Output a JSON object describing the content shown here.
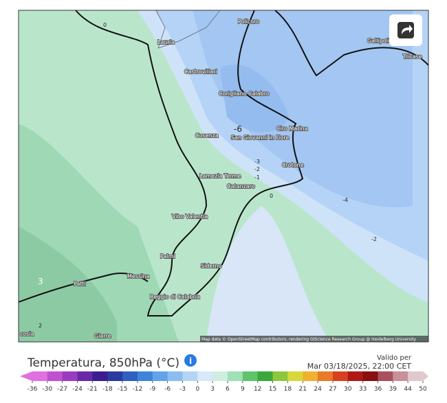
{
  "map": {
    "cities": [
      "Policoro",
      "Gallipoli",
      "Tricase",
      "Lauria",
      "Castrovillari",
      "Corigliano Calabro",
      "Cosenza",
      "Ciro Marina",
      "San Giovanni in Fiore",
      "Crotone",
      "Lamezia Terme",
      "Catanzaro",
      "Vibo Valentia",
      "Palmi",
      "Siderno",
      "Messina",
      "Reggio di Calabria",
      "Patti",
      "Giarre",
      "cosia"
    ],
    "contour_labels": [
      "0",
      "-6",
      "-3",
      "-2",
      "-1",
      "0",
      "-4",
      "-2",
      "3",
      "2"
    ],
    "attribution": "Map data © OpenStreetMap contributors, rendering GIScience Research Group @ Heidelberg University"
  },
  "legend": {
    "title": "Temperatura, 850hPa (°C)",
    "valid_label": "Valido per",
    "valid_time": "Mar 03/18/2025, 22:00 CET",
    "ticks": [
      "-36",
      "-30",
      "-27",
      "-24",
      "-21",
      "-18",
      "-15",
      "-12",
      "-9",
      "-6",
      "-3",
      "0",
      "3",
      "6",
      "9",
      "12",
      "15",
      "18",
      "21",
      "24",
      "27",
      "30",
      "33",
      "36",
      "39",
      "44",
      "50"
    ],
    "colors": [
      "#e070e0",
      "#c050d0",
      "#9a3cc0",
      "#6a28a8",
      "#3c1e90",
      "#2a3aa0",
      "#2f5fc0",
      "#3f84d8",
      "#62a2e6",
      "#8cbcf0",
      "#b4d4f6",
      "#d8e8fa",
      "#cfeee0",
      "#9fe0b4",
      "#5ec46a",
      "#3aa83a",
      "#8cc83a",
      "#d8d83a",
      "#f0b030",
      "#e87a28",
      "#d84020",
      "#b01818",
      "#881010",
      "#a85060",
      "#c89098",
      "#e0c8cc"
    ]
  }
}
